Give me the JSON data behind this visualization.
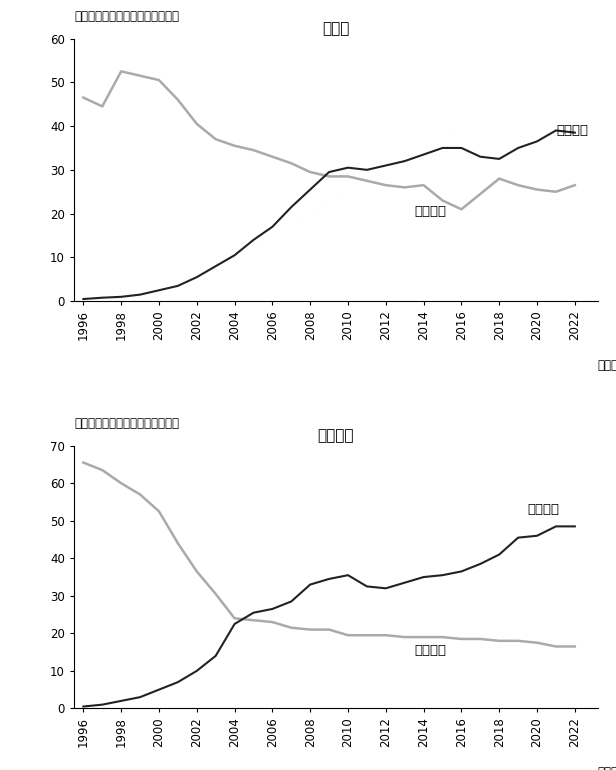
{
  "years": [
    1996,
    1997,
    1998,
    1999,
    2000,
    2001,
    2002,
    2003,
    2004,
    2005,
    2006,
    2007,
    2008,
    2009,
    2010,
    2011,
    2012,
    2013,
    2014,
    2015,
    2016,
    2017,
    2018,
    2019,
    2020,
    2021,
    2022
  ],
  "sales_state": [
    46.5,
    44.5,
    52.5,
    51.5,
    50.5,
    46.0,
    40.5,
    37.0,
    35.5,
    34.5,
    33.0,
    31.5,
    29.5,
    28.5,
    28.5,
    27.5,
    26.5,
    26.0,
    26.5,
    23.0,
    21.0,
    24.5,
    28.0,
    26.5,
    25.5,
    25.0,
    26.5
  ],
  "sales_private": [
    0.5,
    0.8,
    1.0,
    1.5,
    2.5,
    3.5,
    5.5,
    8.0,
    10.5,
    14.0,
    17.0,
    21.5,
    25.5,
    29.5,
    30.5,
    30.0,
    31.0,
    32.0,
    33.5,
    35.0,
    35.0,
    33.0,
    32.5,
    35.0,
    36.5,
    39.0,
    38.5
  ],
  "emp_state": [
    65.5,
    63.5,
    60.0,
    57.0,
    52.5,
    44.0,
    36.5,
    30.5,
    24.0,
    23.5,
    23.0,
    21.5,
    21.0,
    21.0,
    19.5,
    19.5,
    19.5,
    19.0,
    19.0,
    19.0,
    18.5,
    18.5,
    18.0,
    18.0,
    17.5,
    16.5,
    16.5
  ],
  "emp_private": [
    0.5,
    1.0,
    2.0,
    3.0,
    5.0,
    7.0,
    10.0,
    14.0,
    22.5,
    25.5,
    26.5,
    28.5,
    33.0,
    34.5,
    35.5,
    32.5,
    32.0,
    33.5,
    35.0,
    35.5,
    36.5,
    38.5,
    41.0,
    45.5,
    46.0,
    48.5,
    48.5
  ],
  "title1": "売上高",
  "title2": "従業員数",
  "ylabel": "（工業企業に占めるシェア、％）",
  "label_state": "国有企業",
  "label_private": "民営企業",
  "xlabel": "（年）",
  "color_state": "#aaaaaa",
  "color_private": "#222222",
  "ylim1": [
    0,
    60
  ],
  "ylim2": [
    0,
    70
  ],
  "yticks1": [
    0,
    10,
    20,
    30,
    40,
    50,
    60
  ],
  "yticks2": [
    0,
    10,
    20,
    30,
    40,
    50,
    60,
    70
  ],
  "xticks": [
    1996,
    1998,
    2000,
    2002,
    2004,
    2006,
    2008,
    2010,
    2012,
    2014,
    2016,
    2018,
    2020,
    2022
  ]
}
